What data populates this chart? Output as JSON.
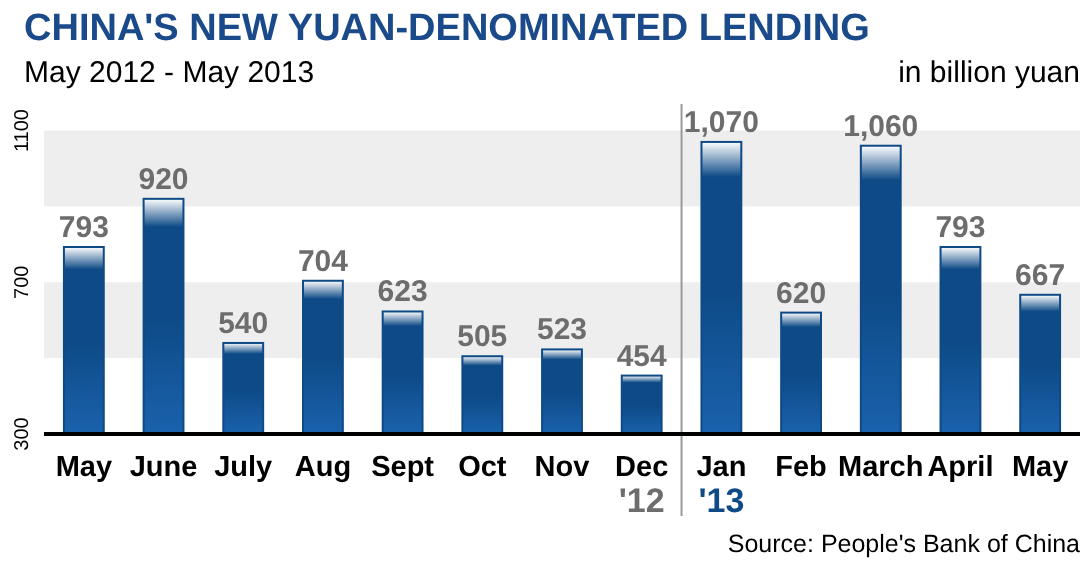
{
  "chart_data": {
    "type": "bar",
    "title": "CHINA'S NEW YUAN-DENOMINATED  LENDING",
    "subtitle": "May 2012 - May 2013",
    "ylabel": "in billion yuan",
    "categories": [
      "May",
      "June",
      "July",
      "Aug",
      "Sept",
      "Oct",
      "Nov",
      "Dec",
      "Jan",
      "Feb",
      "March",
      "April",
      "May"
    ],
    "values": [
      793,
      920,
      540,
      704,
      623,
      505,
      523,
      454,
      1070,
      620,
      1060,
      793,
      667
    ],
    "value_labels": [
      "793",
      "920",
      "540",
      "704",
      "623",
      "505",
      "523",
      "454",
      "1,070",
      "620",
      "1,060",
      "793",
      "667"
    ],
    "color": "#0d4a86",
    "ylim": [
      300,
      1170
    ],
    "yticks": [
      300,
      700,
      1100
    ],
    "bands": [
      {
        "axis": "y",
        "from": 500,
        "to": 700,
        "color": "#eeeeee"
      },
      {
        "axis": "y",
        "from": 900,
        "to": 1100,
        "color": "#eeeeee"
      }
    ],
    "annotations": [
      "'12",
      "'13",
      "Source: People's Bank of China"
    ]
  }
}
